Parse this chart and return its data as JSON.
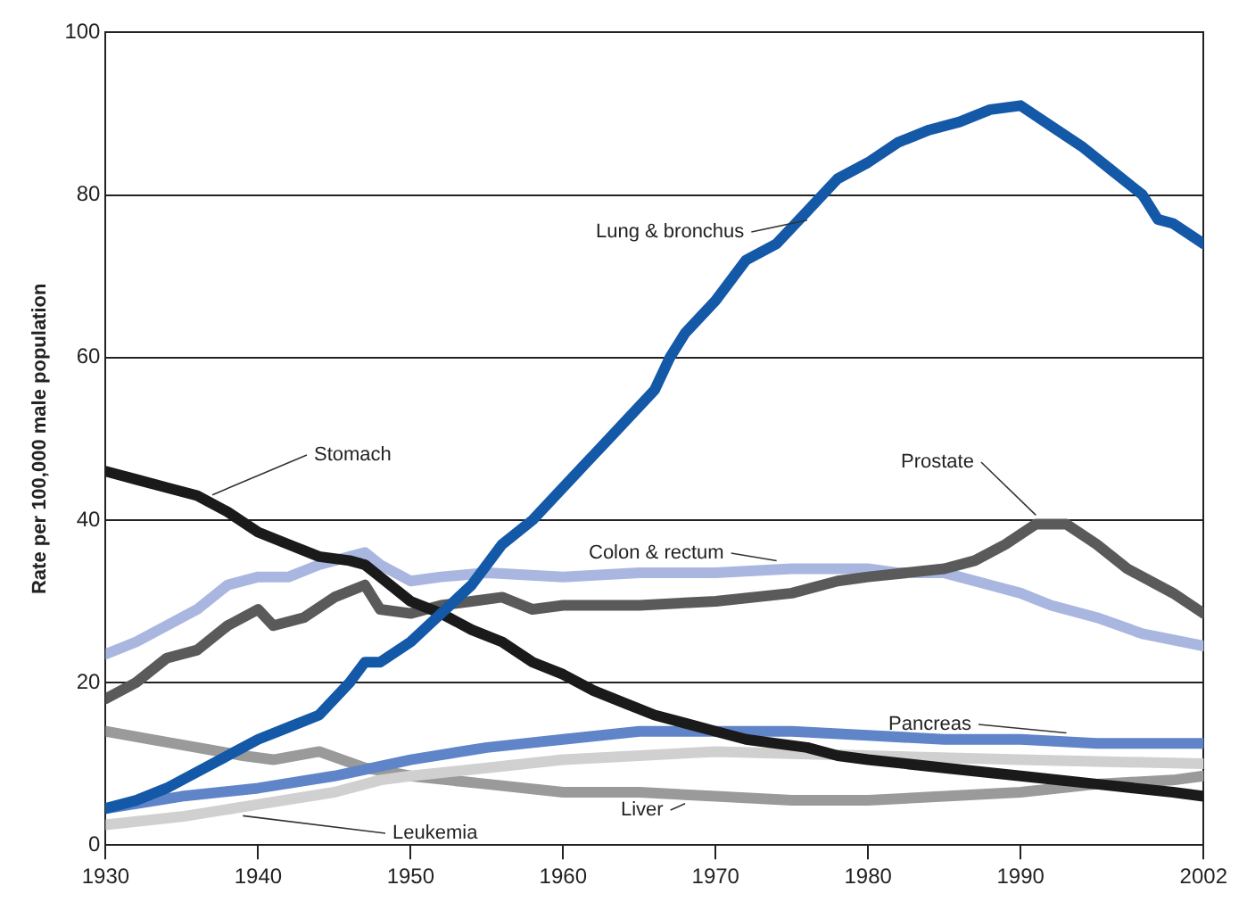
{
  "chart_data": {
    "type": "line",
    "ylabel": "Rate per 100,000 male population",
    "xlim": [
      1930,
      2002
    ],
    "xticks": [
      1930,
      1940,
      1950,
      1960,
      1970,
      1980,
      1990,
      2002
    ],
    "ylim": [
      0,
      100
    ],
    "yticks": [
      0,
      20,
      40,
      60,
      80,
      100
    ],
    "grid": "y",
    "legend": false,
    "marker": "none",
    "line_style": "solid",
    "series": [
      {
        "name": "Lung & bronchus",
        "color": "#1458a8",
        "x": [
          1930,
          1932,
          1934,
          1936,
          1938,
          1940,
          1942,
          1944,
          1946,
          1947,
          1948,
          1950,
          1952,
          1954,
          1956,
          1958,
          1960,
          1962,
          1964,
          1966,
          1967,
          1968,
          1970,
          1972,
          1974,
          1976,
          1978,
          1980,
          1982,
          1984,
          1986,
          1988,
          1990,
          1992,
          1994,
          1996,
          1998,
          1999,
          2000,
          2002
        ],
        "values": [
          4.5,
          5.5,
          7,
          9,
          11,
          13,
          14.5,
          16,
          20,
          22.5,
          22.5,
          25,
          28.5,
          32,
          37,
          40,
          44,
          48,
          52,
          56,
          60,
          63,
          67,
          72,
          74,
          78,
          82,
          84,
          86.5,
          88,
          89,
          90.5,
          91,
          88.5,
          86,
          83,
          80,
          77,
          76.5,
          74
        ]
      },
      {
        "name": "Stomach",
        "color": "#1a1a1a",
        "x": [
          1930,
          1932,
          1934,
          1936,
          1938,
          1940,
          1942,
          1944,
          1946,
          1947,
          1948,
          1950,
          1952,
          1954,
          1956,
          1958,
          1960,
          1962,
          1964,
          1966,
          1968,
          1970,
          1972,
          1974,
          1976,
          1978,
          1980,
          1985,
          1990,
          1995,
          2000,
          2002
        ],
        "values": [
          46,
          45,
          44,
          43,
          41,
          38.5,
          37,
          35.5,
          35,
          34.5,
          33,
          30,
          28.5,
          26.5,
          25,
          22.5,
          21,
          19,
          17.5,
          16,
          15,
          14,
          13,
          12.5,
          12,
          11,
          10.5,
          9.5,
          8.5,
          7.5,
          6.5,
          6
        ]
      },
      {
        "name": "Prostate",
        "color": "#5a5a5a",
        "x": [
          1930,
          1932,
          1934,
          1936,
          1938,
          1940,
          1941,
          1943,
          1945,
          1947,
          1948,
          1950,
          1952,
          1954,
          1956,
          1958,
          1960,
          1965,
          1970,
          1975,
          1978,
          1980,
          1985,
          1987,
          1989,
          1991,
          1993,
          1995,
          1997,
          2000,
          2002
        ],
        "values": [
          18,
          20,
          23,
          24,
          27,
          29,
          27,
          28,
          30.5,
          32,
          29,
          28.5,
          29.5,
          30,
          30.5,
          29,
          29.5,
          29.5,
          30,
          31,
          32.5,
          33,
          34,
          35,
          37,
          39.5,
          39.5,
          37,
          34,
          31,
          28.5
        ]
      },
      {
        "name": "Colon & rectum",
        "color": "#a9b7e0",
        "x": [
          1930,
          1932,
          1934,
          1936,
          1938,
          1940,
          1942,
          1944,
          1946,
          1947,
          1948,
          1950,
          1952,
          1955,
          1960,
          1965,
          1970,
          1975,
          1980,
          1982,
          1985,
          1988,
          1990,
          1992,
          1995,
          1998,
          2002
        ],
        "values": [
          23.5,
          25,
          27,
          29,
          32,
          33,
          33,
          34.5,
          35.5,
          36,
          34.5,
          32.5,
          33,
          33.5,
          33,
          33.5,
          33.5,
          34,
          34,
          33.5,
          33.5,
          32,
          31,
          29.5,
          28,
          26,
          24.5
        ]
      },
      {
        "name": "Pancreas",
        "color": "#5f84c8",
        "x": [
          1930,
          1935,
          1940,
          1945,
          1950,
          1955,
          1960,
          1965,
          1970,
          1975,
          1980,
          1985,
          1990,
          1995,
          2002
        ],
        "values": [
          4.5,
          6,
          7,
          8.5,
          10.5,
          12,
          13,
          14,
          14,
          14,
          13.5,
          13,
          13,
          12.5,
          12.5
        ]
      },
      {
        "name": "Leukemia",
        "color": "#d0d0d0",
        "x": [
          1930,
          1935,
          1940,
          1945,
          1948,
          1950,
          1955,
          1960,
          1965,
          1970,
          1980,
          1990,
          2002
        ],
        "values": [
          2.5,
          3.5,
          5,
          6.5,
          8,
          8.5,
          9.5,
          10.5,
          11,
          11.5,
          11,
          10.5,
          10
        ]
      },
      {
        "name": "Liver",
        "color": "#9a9a9a",
        "x": [
          1930,
          1933,
          1936,
          1939,
          1941,
          1944,
          1947,
          1950,
          1955,
          1960,
          1965,
          1970,
          1975,
          1980,
          1985,
          1990,
          1995,
          2000,
          2002
        ],
        "values": [
          14,
          13,
          12,
          11,
          10.5,
          11.5,
          9.5,
          8.5,
          7.5,
          6.5,
          6.5,
          6,
          5.5,
          5.5,
          6,
          6.5,
          7.5,
          8,
          8.5
        ]
      }
    ]
  }
}
